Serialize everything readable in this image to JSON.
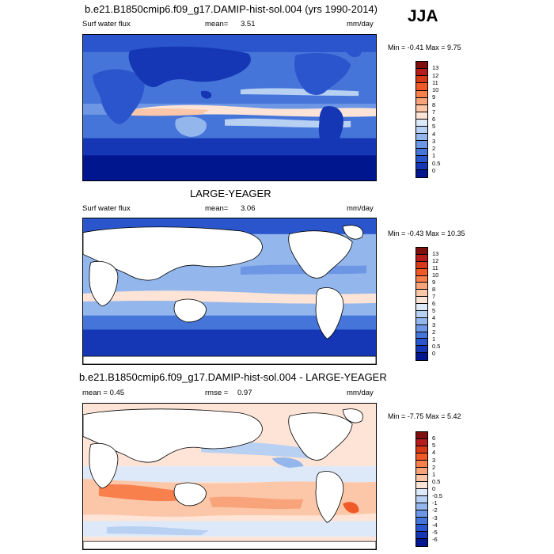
{
  "season": "JJA",
  "panels": [
    {
      "title": "b.e21.B1850cmip6.f09_g17.DAMIP-hist-sol.004 (yrs 1990-2014)",
      "left_label": "Surf water flux",
      "stat_label": "mean=",
      "stat_value": "3.51",
      "units": "mm/day",
      "minmax_label": "Min =  -0.41 Max =   9.75",
      "colorbar": {
        "labels": [
          "13",
          "12",
          "11",
          "10",
          "9",
          "8",
          "7",
          "6",
          "5",
          "4",
          "3",
          "2",
          "1",
          "0.5",
          "0"
        ],
        "colors": [
          "#7e0f0f",
          "#b51c1c",
          "#d63a18",
          "#ef5a28",
          "#f7804d",
          "#f9a37a",
          "#fbc7a8",
          "#fde4d6",
          "#dde9f8",
          "#b8d0f2",
          "#93b6ec",
          "#6d97e4",
          "#4675da",
          "#2a55cc",
          "#1537b5",
          "#00168f"
        ]
      }
    },
    {
      "title": "LARGE-YEAGER",
      "left_label": "Surf water flux",
      "stat_label": "mean=",
      "stat_value": "3.06",
      "units": "mm/day",
      "minmax_label": "Min =  -0.43 Max =  10.35",
      "colorbar": {
        "labels": [
          "13",
          "12",
          "11",
          "10",
          "9",
          "8",
          "7",
          "6",
          "5",
          "4",
          "3",
          "2",
          "1",
          "0.5",
          "0"
        ],
        "colors": [
          "#7e0f0f",
          "#b51c1c",
          "#d63a18",
          "#ef5a28",
          "#f7804d",
          "#f9a37a",
          "#fbc7a8",
          "#fde4d6",
          "#dde9f8",
          "#b8d0f2",
          "#93b6ec",
          "#6d97e4",
          "#4675da",
          "#2a55cc",
          "#1537b5",
          "#00168f"
        ]
      }
    },
    {
      "title": "b.e21.B1850cmip6.f09_g17.DAMIP-hist-sol.004 - LARGE-YEAGER",
      "left_label": "mean =   0.45",
      "stat_label": "rmse =",
      "stat_value": "0.97",
      "units": "mm/day",
      "minmax_label": "Min =  -7.75 Max =   5.42",
      "colorbar": {
        "labels": [
          "6",
          "5",
          "4",
          "3",
          "2",
          "1",
          "0.5",
          "0",
          "-0.5",
          "-1",
          "-2",
          "-3",
          "-4",
          "-5",
          "-6"
        ],
        "colors": [
          "#7e0f0f",
          "#b51c1c",
          "#d63a18",
          "#ef5a28",
          "#f7804d",
          "#f9a37a",
          "#fbc7a8",
          "#fde4d6",
          "#dde9f8",
          "#b8d0f2",
          "#93b6ec",
          "#6d97e4",
          "#4675da",
          "#2a55cc",
          "#1537b5",
          "#00168f"
        ]
      }
    }
  ]
}
